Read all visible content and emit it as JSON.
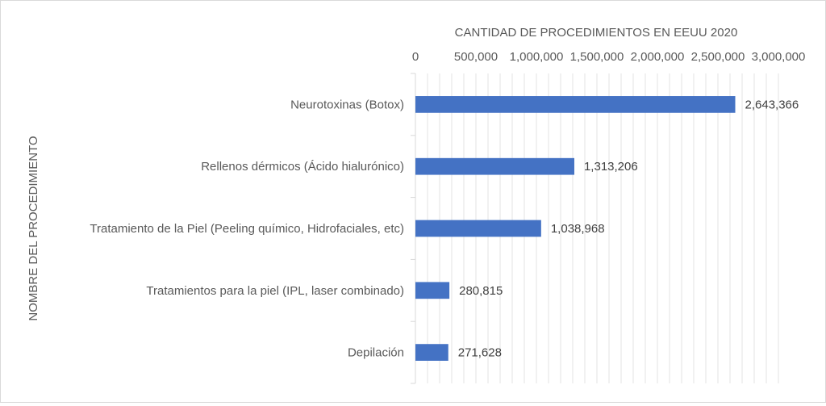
{
  "chart_data": {
    "type": "bar",
    "orientation": "horizontal",
    "xlabel": "CANTIDAD DE PROCEDIMIENTOS EN EEUU 2020",
    "ylabel": "NOMBRE DEL PROCEDIMIENTO",
    "xlim": [
      0,
      3000000
    ],
    "x_axis_position": "top",
    "grid": true,
    "bar_color": "#4472c4",
    "xticks": [
      "0",
      "500,000",
      "1,000,000",
      "1,500,000",
      "2,000,000",
      "2,500,000",
      "3,000,000"
    ],
    "categories": [
      "Neurotoxinas (Botox)",
      "Rellenos dérmicos (Ácido hialurónico)",
      "Tratamiento de la Piel (Peeling químico, Hidrofaciales, etc)",
      "Tratamientos para la piel (IPL, laser combinado)",
      "Depilación"
    ],
    "values": [
      2643366,
      1313206,
      1038968,
      280815,
      271628
    ],
    "data_labels": [
      "2,643,366",
      "1,313,206",
      "1,038,968",
      "280,815",
      "271,628"
    ]
  }
}
